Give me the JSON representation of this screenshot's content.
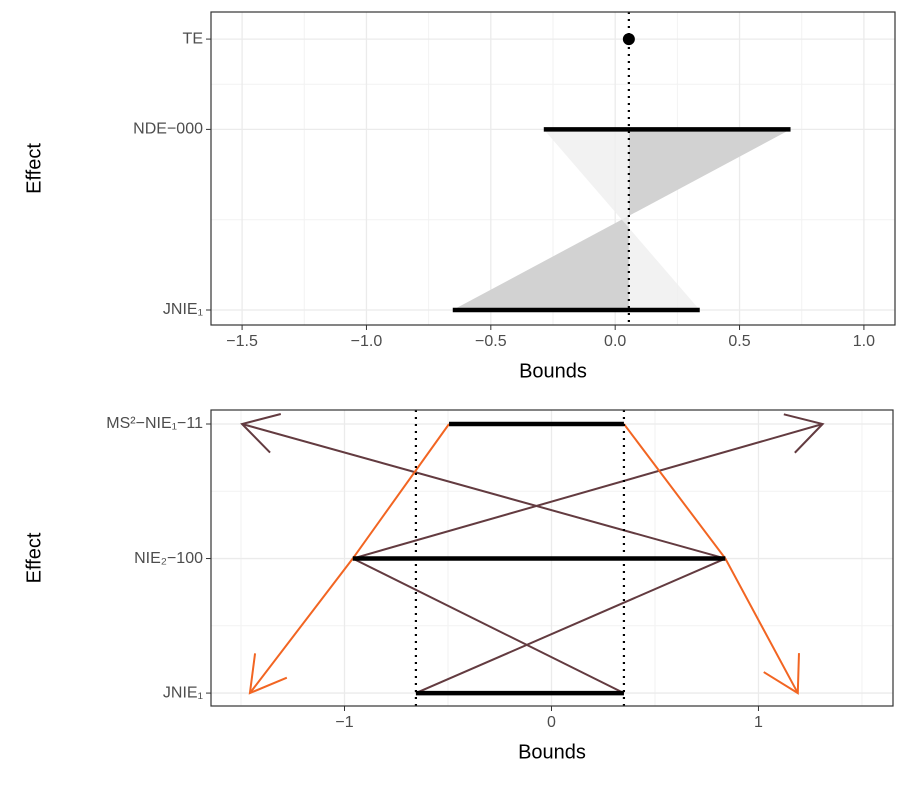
{
  "chart_data": [
    {
      "type": "bounds",
      "x_label": "Bounds",
      "y_label": "Effect",
      "xlim": [
        -1.625,
        1.125
      ],
      "xticks": [
        {
          "value": -1.5,
          "label": "−1.5"
        },
        {
          "value": -1,
          "label": "−1.0"
        },
        {
          "value": -0.5,
          "label": "−0.5"
        },
        {
          "value": 0,
          "label": "0.0"
        },
        0.5,
        {
          "value": 1,
          "label": "1.0"
        }
      ],
      "ylim": [
        1.417,
        3.15
      ],
      "yticks": [
        {
          "value": 3,
          "label": "TE"
        },
        {
          "value": 2.5,
          "label": "NDE−000"
        },
        {
          "value": 1.5,
          "label": "JNIE₁"
        }
      ],
      "point": {
        "x": 0.055,
        "y": 3
      },
      "intervals": [
        {
          "y": 2.5,
          "lower": -0.287,
          "upper": 0.705
        },
        {
          "y": 1.5,
          "lower": -0.653,
          "upper": 0.34
        }
      ],
      "vlines": [
        0.055
      ],
      "ribbon_colors": [
        "#d2d2d2",
        "#efefef"
      ],
      "grid": true
    },
    {
      "type": "bounds",
      "x_label": "Bounds",
      "y_label": "Effect",
      "xlim": [
        -1.645,
        1.65
      ],
      "xticks": [
        {
          "value": -1,
          "label": "−1"
        },
        0,
        1
      ],
      "ylim": [
        0.904,
        3.104
      ],
      "yticks": [
        {
          "value": 3,
          "label": "MS²−NIE₁−11"
        },
        {
          "value": 2,
          "label": "NIE₂−100"
        },
        {
          "value": 1,
          "label": "JNIE₁"
        }
      ],
      "intervals": [
        {
          "y": 3,
          "lower": -0.495,
          "upper": 0.35
        },
        {
          "y": 2,
          "lower": -0.96,
          "upper": 0.84
        },
        {
          "y": 1,
          "lower": -0.655,
          "upper": 0.35
        }
      ],
      "vlines": [
        -0.655,
        0.35
      ],
      "segments": [
        {
          "color": "#633b40",
          "arrow": true,
          "points": [
            [
              0.84,
              2
            ],
            [
              -1.495,
              3
            ]
          ]
        },
        {
          "color": "#633b40",
          "arrow": true,
          "points": [
            [
              -0.96,
              2
            ],
            [
              1.31,
              3
            ]
          ]
        },
        {
          "color": "#633b40",
          "arrow": false,
          "points": [
            [
              -0.96,
              2
            ],
            [
              0.35,
              1
            ]
          ]
        },
        {
          "color": "#633b40",
          "arrow": false,
          "points": [
            [
              0.84,
              2
            ],
            [
              -0.655,
              1
            ]
          ]
        },
        {
          "color": "#f26522",
          "arrow": true,
          "points": [
            [
              -0.495,
              3
            ],
            [
              -0.96,
              2
            ],
            [
              -1.457,
              1
            ]
          ]
        },
        {
          "color": "#f26522",
          "arrow": true,
          "points": [
            [
              0.35,
              3
            ],
            [
              0.84,
              2
            ],
            [
              1.19,
              1
            ]
          ]
        }
      ],
      "grid": true
    }
  ]
}
